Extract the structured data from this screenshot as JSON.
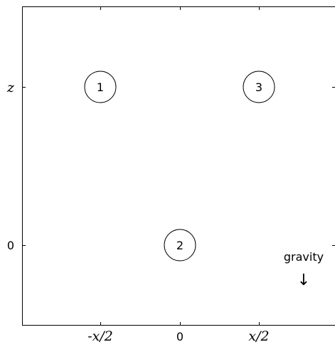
{
  "axes": {
    "x_ticks": [
      "-x/2",
      "0",
      "x/2"
    ],
    "y_ticks": [
      "z",
      "0"
    ]
  },
  "particles": [
    "1",
    "2",
    "3"
  ],
  "gravity": {
    "label": "gravity",
    "arrow": "↓"
  }
}
